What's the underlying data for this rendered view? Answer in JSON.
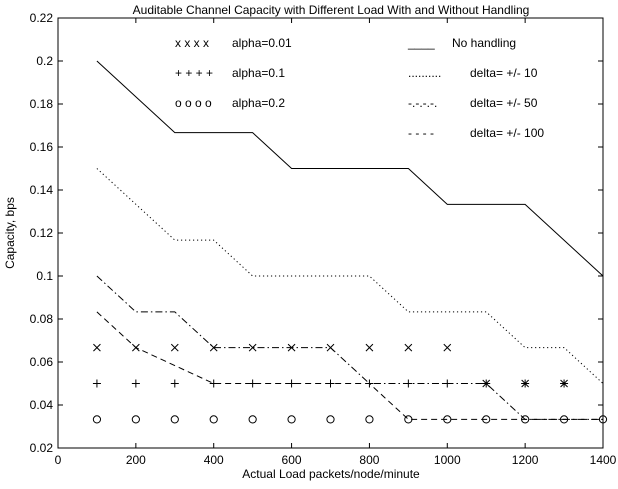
{
  "chart_data": {
    "type": "line",
    "title": "Auditable Channel Capacity with Different Load With and Without Handling",
    "xlabel": "Actual Load packets/node/minute",
    "ylabel": "Capacity, bps",
    "xlim": [
      0,
      1400
    ],
    "ylim": [
      0.02,
      0.22
    ],
    "xticks": [
      0,
      200,
      400,
      600,
      800,
      1000,
      1200,
      1400
    ],
    "xtick_labels": [
      "0",
      "200",
      "400",
      "600",
      "800",
      "1000",
      "1200",
      "1400"
    ],
    "yticks": [
      0.02,
      0.04,
      0.06,
      0.08,
      0.1,
      0.12,
      0.14,
      0.16,
      0.18,
      0.2,
      0.22
    ],
    "ytick_labels": [
      "0.02",
      "0.04",
      "0.06",
      "0.08",
      "0.1",
      "0.12",
      "0.14",
      "0.16",
      "0.18",
      "0.2",
      "0.22"
    ],
    "grid": false,
    "lines": [
      {
        "name": "No handling",
        "legend_sample": "____",
        "style": "solid",
        "x": [
          100,
          300,
          500,
          600,
          900,
          1000,
          1200,
          1400
        ],
        "y": [
          0.2,
          0.1667,
          0.1667,
          0.15,
          0.15,
          0.1333,
          0.1333,
          0.1
        ]
      },
      {
        "name": "delta= +/- 10",
        "legend_sample": "..........",
        "style": "dotted",
        "x": [
          100,
          300,
          400,
          500,
          800,
          900,
          1100,
          1200,
          1300,
          1400
        ],
        "y": [
          0.15,
          0.1167,
          0.1167,
          0.1,
          0.1,
          0.0833,
          0.0833,
          0.0667,
          0.0667,
          0.05
        ]
      },
      {
        "name": "delta= +/- 50",
        "legend_sample": "-.-.-.-.",
        "style": "dashdot",
        "x": [
          100,
          200,
          300,
          400,
          700,
          800,
          1000,
          1100,
          1200,
          1400
        ],
        "y": [
          0.1,
          0.0833,
          0.0833,
          0.0667,
          0.0667,
          0.05,
          0.05,
          0.05,
          0.0333,
          0.0333
        ]
      },
      {
        "name": "delta= +/- 100",
        "legend_sample": "- - - -",
        "style": "dashed",
        "x": [
          100,
          200,
          400,
          800,
          900,
          1400
        ],
        "y": [
          0.0833,
          0.0667,
          0.05,
          0.05,
          0.0333,
          0.0333
        ]
      }
    ],
    "markers": [
      {
        "name": "alpha=0.01",
        "legend_sample": "x x x x",
        "symbol": "x",
        "x": [
          100,
          200,
          300,
          400,
          500,
          600,
          700,
          800,
          900,
          1000,
          1100,
          1200,
          1300
        ],
        "y": [
          0.0667,
          0.0667,
          0.0667,
          0.0667,
          0.0667,
          0.0667,
          0.0667,
          0.0667,
          0.0667,
          0.0667,
          0.05,
          0.05,
          0.05
        ]
      },
      {
        "name": "alpha=0.1",
        "legend_sample": "+ + + +",
        "symbol": "+",
        "x": [
          100,
          200,
          300,
          400,
          500,
          600,
          700,
          800,
          900,
          1000,
          1100,
          1200,
          1300
        ],
        "y": [
          0.05,
          0.05,
          0.05,
          0.05,
          0.05,
          0.05,
          0.05,
          0.05,
          0.05,
          0.05,
          0.05,
          0.05,
          0.05
        ]
      },
      {
        "name": "alpha=0.2",
        "legend_sample": "o o o o",
        "symbol": "o",
        "x": [
          100,
          200,
          300,
          400,
          500,
          600,
          700,
          800,
          900,
          1000,
          1100,
          1200,
          1300,
          1400
        ],
        "y": [
          0.0333,
          0.0333,
          0.0333,
          0.0333,
          0.0333,
          0.0333,
          0.0333,
          0.0333,
          0.0333,
          0.0333,
          0.0333,
          0.0333,
          0.0333,
          0.0333
        ]
      }
    ],
    "legend": {
      "placement": "inside-top",
      "left_column": [
        "alpha=0.01",
        "alpha=0.1",
        "alpha=0.2"
      ],
      "right_column": [
        "No handling",
        "delta= +/- 10",
        "delta= +/- 50",
        "delta= +/- 100"
      ]
    }
  }
}
